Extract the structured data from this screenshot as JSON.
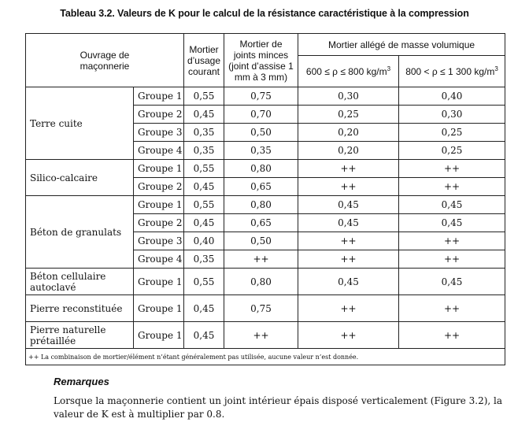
{
  "title": "Tableau 3.2. Valeurs de K pour le calcul de la résistance caractéristique à la compression",
  "headers": {
    "ouvrage": "Ouvrage de maçonnerie",
    "mortier_courant": "Mortier d’usage courant",
    "joints_minces": "Mortier de joints minces (joint d’assise 1 mm à 3 mm)",
    "allege": "Mortier allégé de masse volumique",
    "allege_low": "600 ≤ ρ ≤ 800 kg/m",
    "allege_high": "800 < ρ ≤ 1 300 kg/m",
    "unit_exp": "3"
  },
  "rows": [
    {
      "material": "Terre cuite",
      "groups": [
        {
          "g": "Groupe 1",
          "v": [
            "0,55",
            "0,75",
            "0,30",
            "0,40"
          ]
        },
        {
          "g": "Groupe 2",
          "v": [
            "0,45",
            "0,70",
            "0,25",
            "0,30"
          ]
        },
        {
          "g": "Groupe 3",
          "v": [
            "0,35",
            "0,50",
            "0,20",
            "0,25"
          ]
        },
        {
          "g": "Groupe 4",
          "v": [
            "0,35",
            "0,35",
            "0,20",
            "0,25"
          ]
        }
      ]
    },
    {
      "material": "Silico-calcaire",
      "groups": [
        {
          "g": "Groupe 1",
          "v": [
            "0,55",
            "0,80",
            "++",
            "++"
          ]
        },
        {
          "g": "Groupe 2",
          "v": [
            "0,45",
            "0,65",
            "++",
            "++"
          ]
        }
      ]
    },
    {
      "material": "Béton de granulats",
      "groups": [
        {
          "g": "Groupe 1",
          "v": [
            "0,55",
            "0,80",
            "0,45",
            "0,45"
          ]
        },
        {
          "g": "Groupe 2",
          "v": [
            "0,45",
            "0,65",
            "0,45",
            "0,45"
          ]
        },
        {
          "g": "Groupe 3",
          "v": [
            "0,40",
            "0,50",
            "++",
            "++"
          ]
        },
        {
          "g": "Groupe 4",
          "v": [
            "0,35",
            "++",
            "++",
            "++"
          ]
        }
      ]
    },
    {
      "material": "Béton cellulaire autoclavé",
      "groups": [
        {
          "g": "Groupe 1",
          "v": [
            "0,55",
            "0,80",
            "0,45",
            "0,45"
          ]
        }
      ]
    },
    {
      "material": "Pierre reconstituée",
      "groups": [
        {
          "g": "Groupe 1",
          "v": [
            "0,45",
            "0,75",
            "++",
            "++"
          ]
        }
      ]
    },
    {
      "material": "Pierre naturelle prétaillée",
      "groups": [
        {
          "g": "Groupe 1",
          "v": [
            "0,45",
            "++",
            "++",
            "++"
          ]
        }
      ]
    }
  ],
  "note": "++ La combinaison de mortier/élément n’étant généralement pas utilisée, aucune valeur n’est donnée.",
  "remarks_title": "Remarques",
  "remarks_text": "Lorsque la maçonnerie contient un joint intérieur épais disposé verticalement (Figure 3.2), la valeur de K est à multiplier par 0.8."
}
